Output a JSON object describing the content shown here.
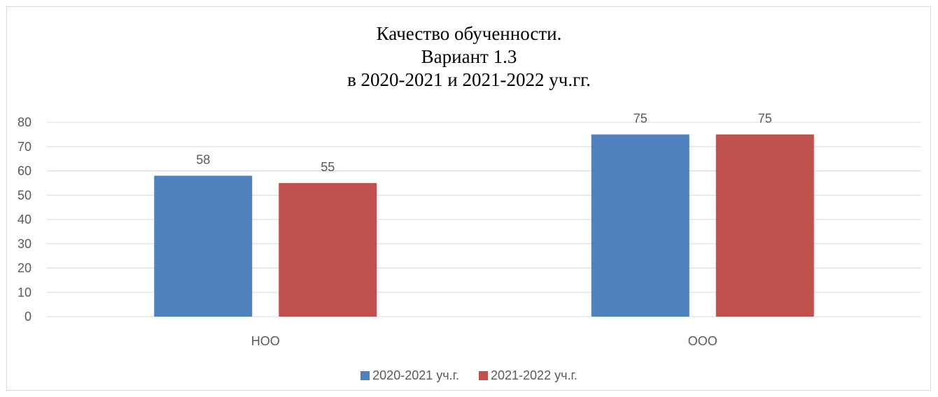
{
  "chart_data": {
    "type": "bar",
    "title_lines": [
      "Качество обученности.",
      "Вариант 1.3",
      "в 2020-2021 и 2021-2022 уч.гг."
    ],
    "categories": [
      "НОО",
      "ООО"
    ],
    "series": [
      {
        "name": "2020-2021 уч.г.",
        "color": "#4f81bd",
        "values": [
          58,
          75
        ]
      },
      {
        "name": "2021-2022 уч.г.",
        "color": "#c0504d",
        "values": [
          55,
          75
        ]
      }
    ],
    "ylim": [
      0,
      80
    ],
    "yticks": [
      0,
      10,
      20,
      30,
      40,
      50,
      60,
      70,
      80
    ],
    "grid": true,
    "legend_position": "bottom",
    "data_labels": true
  },
  "colors": {
    "gridline": "#d9d9d9",
    "text": "#595959",
    "border": "#d9d9d9"
  }
}
